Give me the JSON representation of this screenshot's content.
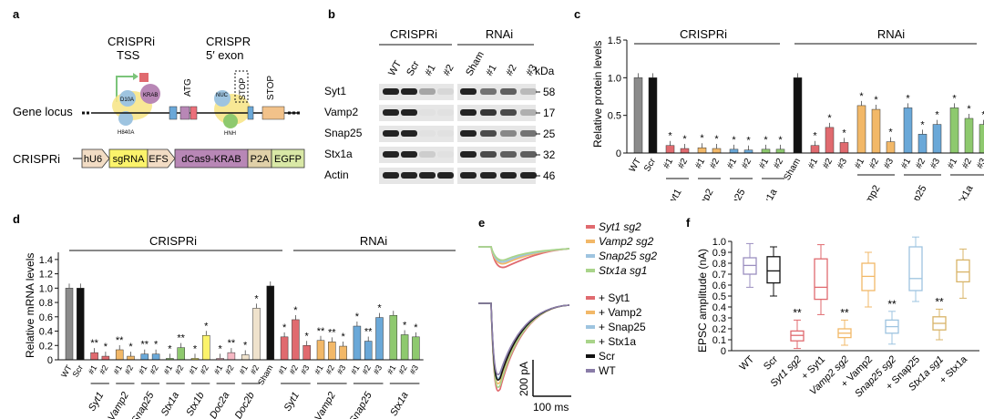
{
  "panel_a": {
    "letter": "a",
    "crispri_tss_line1": "CRISPRi",
    "crispri_tss_line2": "TSS",
    "crispr_exon_line1": "CRISPR",
    "crispr_exon_line2": "5′ exon",
    "atg": "ATG",
    "stop_boxed": "STOP",
    "stop": "STOP",
    "gene_locus": "Gene locus",
    "d10a": "D10A",
    "krab": "KRAB",
    "h840a": "H840A",
    "nuc": "NUC",
    "hnh": "HNH",
    "construct_label": "CRISPRi",
    "construct_parts": [
      "hU6",
      "sgRNA",
      "EFS",
      "dCas9-KRAB",
      "P2A",
      "EGFP"
    ],
    "colors": {
      "hU6": "#f2dcc4",
      "sgRNA": "#fbf36b",
      "EFS": "#f2dcc4",
      "dCas9": "#b887b6",
      "P2A": "#e0d0a8",
      "EGFP": "#d9e8a6",
      "krab_ball": "#b887b6",
      "dcas_ball": "#f7e58a",
      "exon1": "#ec6f7a",
      "exon2": "#6aa8d8",
      "exon3": "#f2c28a",
      "exon4": "#8ec96e"
    }
  },
  "panel_b": {
    "letter": "b",
    "group_crispri": "CRISPRi",
    "group_rnai": "RNAi",
    "lanes_crispri": [
      "WT",
      "Scr",
      "#1",
      "#2"
    ],
    "lanes_rnai": [
      "Sham",
      "#1",
      "#2",
      "#3"
    ],
    "kda": "kDa",
    "proteins": [
      "Syt1",
      "Vamp2",
      "Snap25",
      "Stx1a",
      "Actin"
    ],
    "weights": [
      "58",
      "17",
      "25",
      "32",
      "46"
    ]
  },
  "panel_c": {
    "letter": "c",
    "chart_data": {
      "type": "bar",
      "ylabel": "Relative protein levels",
      "ylim": [
        0,
        1.5
      ],
      "yticks": [
        "0",
        "0.5",
        "1.0",
        "1.5"
      ],
      "group_labels": [
        "CRISPRi",
        "RNAi"
      ],
      "control_labels": [
        "WT",
        "Scr",
        "Sham"
      ],
      "sublabels": [
        "Syt1",
        "Vamp2",
        "Snap25",
        "Stx1a",
        "Vamp2",
        "Snap25",
        "Stx1a"
      ],
      "bars": [
        {
          "label": "WT",
          "value": 1.0,
          "color": "#8b8b8b",
          "star": ""
        },
        {
          "label": "Scr",
          "value": 1.0,
          "color": "#111111",
          "star": ""
        },
        {
          "label": "#1",
          "value": 0.1,
          "color": "#e06a6f",
          "star": "*"
        },
        {
          "label": "#2",
          "value": 0.06,
          "color": "#e06a6f",
          "star": "*"
        },
        {
          "label": "#1",
          "value": 0.07,
          "color": "#f2b868",
          "star": "*"
        },
        {
          "label": "#2",
          "value": 0.06,
          "color": "#f2b868",
          "star": "*"
        },
        {
          "label": "#1",
          "value": 0.05,
          "color": "#6aa8d8",
          "star": "*"
        },
        {
          "label": "#2",
          "value": 0.04,
          "color": "#6aa8d8",
          "star": "*"
        },
        {
          "label": "#1",
          "value": 0.05,
          "color": "#8ec96e",
          "star": "*"
        },
        {
          "label": "#2",
          "value": 0.05,
          "color": "#8ec96e",
          "star": "*"
        },
        {
          "label": "Sham",
          "value": 1.0,
          "color": "#111111",
          "star": ""
        },
        {
          "label": "#1",
          "value": 0.1,
          "color": "#e06a6f",
          "star": "*"
        },
        {
          "label": "#2",
          "value": 0.34,
          "color": "#e06a6f",
          "star": "*"
        },
        {
          "label": "#3",
          "value": 0.14,
          "color": "#e06a6f",
          "star": "*"
        },
        {
          "label": "#1",
          "value": 0.63,
          "color": "#f2b868",
          "star": "*"
        },
        {
          "label": "#2",
          "value": 0.58,
          "color": "#f2b868",
          "star": "*"
        },
        {
          "label": "#3",
          "value": 0.15,
          "color": "#f2b868",
          "star": "*"
        },
        {
          "label": "#1",
          "value": 0.6,
          "color": "#6aa8d8",
          "star": "*"
        },
        {
          "label": "#2",
          "value": 0.25,
          "color": "#6aa8d8",
          "star": "*"
        },
        {
          "label": "#3",
          "value": 0.38,
          "color": "#6aa8d8",
          "star": "*"
        },
        {
          "label": "#1",
          "value": 0.6,
          "color": "#8ec96e",
          "star": "*"
        },
        {
          "label": "#2",
          "value": 0.46,
          "color": "#8ec96e",
          "star": "*"
        },
        {
          "label": "#3",
          "value": 0.38,
          "color": "#8ec96e",
          "star": "*"
        }
      ]
    }
  },
  "panel_d": {
    "letter": "d",
    "chart_data": {
      "type": "bar",
      "ylabel": "Relative mRNA levels",
      "ylim": [
        0,
        1.5
      ],
      "yticks": [
        "0",
        "0.2",
        "0.4",
        "0.6",
        "0.8",
        "1.0",
        "1.2",
        "1.4"
      ],
      "group_labels": [
        "CRISPRi",
        "RNAi"
      ],
      "control_labels": [
        "WT",
        "Scr",
        "Sham"
      ],
      "sublabels": [
        "Syt1",
        "Vamp2",
        "Snap25",
        "Stx1a",
        "Stx1b",
        "Doc2a",
        "Doc2b",
        "Syt1",
        "Vamp2",
        "Snap25",
        "Stx1a"
      ],
      "bars": [
        {
          "label": "WT",
          "value": 1.0,
          "color": "#8b8b8b",
          "star": ""
        },
        {
          "label": "Scr",
          "value": 1.0,
          "color": "#111111",
          "star": ""
        },
        {
          "label": "#1",
          "value": 0.1,
          "color": "#e06a6f",
          "star": "**"
        },
        {
          "label": "#2",
          "value": 0.05,
          "color": "#e06a6f",
          "star": "*"
        },
        {
          "label": "#1",
          "value": 0.14,
          "color": "#f2b868",
          "star": "**"
        },
        {
          "label": "#2",
          "value": 0.05,
          "color": "#f2b868",
          "star": "*"
        },
        {
          "label": "#1",
          "value": 0.08,
          "color": "#6aa8d8",
          "star": "**"
        },
        {
          "label": "#2",
          "value": 0.08,
          "color": "#6aa8d8",
          "star": "*"
        },
        {
          "label": "#1",
          "value": 0.02,
          "color": "#8ec96e",
          "star": "*"
        },
        {
          "label": "#2",
          "value": 0.17,
          "color": "#8ec96e",
          "star": "**"
        },
        {
          "label": "#1",
          "value": 0.02,
          "color": "#fbf36b",
          "star": "*"
        },
        {
          "label": "#2",
          "value": 0.34,
          "color": "#fbf36b",
          "star": "*"
        },
        {
          "label": "#1",
          "value": 0.02,
          "color": "#f5b7c3",
          "star": "*"
        },
        {
          "label": "#2",
          "value": 0.1,
          "color": "#f5b7c3",
          "star": "**"
        },
        {
          "label": "#1",
          "value": 0.07,
          "color": "#efe2cc",
          "star": "*"
        },
        {
          "label": "#2",
          "value": 0.72,
          "color": "#efe2cc",
          "star": "*"
        },
        {
          "label": "Sham",
          "value": 1.03,
          "color": "#111111",
          "star": ""
        },
        {
          "label": "#1",
          "value": 0.32,
          "color": "#e06a6f",
          "star": "*"
        },
        {
          "label": "#2",
          "value": 0.56,
          "color": "#e06a6f",
          "star": "*"
        },
        {
          "label": "#3",
          "value": 0.2,
          "color": "#e06a6f",
          "star": "*"
        },
        {
          "label": "#1",
          "value": 0.27,
          "color": "#f2b868",
          "star": "**"
        },
        {
          "label": "#2",
          "value": 0.25,
          "color": "#f2b868",
          "star": "**"
        },
        {
          "label": "#3",
          "value": 0.19,
          "color": "#f2b868",
          "star": "*"
        },
        {
          "label": "#1",
          "value": 0.47,
          "color": "#6aa8d8",
          "star": "*"
        },
        {
          "label": "#2",
          "value": 0.26,
          "color": "#6aa8d8",
          "star": "**"
        },
        {
          "label": "#3",
          "value": 0.59,
          "color": "#6aa8d8",
          "star": "*"
        },
        {
          "label": "#1",
          "value": 0.62,
          "color": "#8ec96e",
          "star": ""
        },
        {
          "label": "#2",
          "value": 0.35,
          "color": "#8ec96e",
          "star": "*"
        },
        {
          "label": "#3",
          "value": 0.32,
          "color": "#8ec96e",
          "star": "*"
        }
      ]
    }
  },
  "panel_e": {
    "letter": "e",
    "legend_top": [
      {
        "label": "Syt1 sg2",
        "color": "#e06a6f"
      },
      {
        "label": "Vamp2 sg2",
        "color": "#f2b868"
      },
      {
        "label": "Snap25 sg2",
        "color": "#9ec4e0"
      },
      {
        "label": "Stx1a sg1",
        "color": "#a9d48a"
      }
    ],
    "legend_bottom": [
      {
        "label": "+ Syt1",
        "color": "#e06a6f"
      },
      {
        "label": "+ Vamp2",
        "color": "#f2b868"
      },
      {
        "label": "+ Snap25",
        "color": "#9ec4e0"
      },
      {
        "label": "+ Stx1a",
        "color": "#a9d48a"
      },
      {
        "label": "Scr",
        "color": "#111111"
      },
      {
        "label": "WT",
        "color": "#8a7ca8"
      }
    ],
    "scale_y": "200 pA",
    "scale_x": "100 ms"
  },
  "panel_f": {
    "letter": "f",
    "chart_data": {
      "type": "box",
      "ylabel": "EPSC amplitude (nA)",
      "ylim": [
        0,
        1.1
      ],
      "yticks": [
        "0",
        "0.1",
        "0.2",
        "0.3",
        "0.4",
        "0.5",
        "0.6",
        "0.7",
        "0.8",
        "0.9",
        "1.0"
      ],
      "boxes": [
        {
          "label": "WT",
          "min": 0.58,
          "q1": 0.7,
          "median": 0.78,
          "q3": 0.85,
          "max": 0.98,
          "color": "#9b8fc0",
          "star": ""
        },
        {
          "label": "Scr",
          "min": 0.5,
          "q1": 0.62,
          "median": 0.73,
          "q3": 0.86,
          "max": 0.95,
          "color": "#111111",
          "star": ""
        },
        {
          "label": "Syt1 sg2",
          "min": 0.02,
          "q1": 0.09,
          "median": 0.14,
          "q3": 0.18,
          "max": 0.28,
          "color": "#e06a6f",
          "star": "**"
        },
        {
          "label": "+ Syt1",
          "min": 0.33,
          "q1": 0.47,
          "median": 0.58,
          "q3": 0.84,
          "max": 0.97,
          "color": "#e06a6f",
          "star": ""
        },
        {
          "label": "Vamp2 sg2",
          "min": 0.05,
          "q1": 0.12,
          "median": 0.16,
          "q3": 0.2,
          "max": 0.28,
          "color": "#f2b868",
          "star": "**"
        },
        {
          "label": "+ Vamp2",
          "min": 0.4,
          "q1": 0.55,
          "median": 0.68,
          "q3": 0.8,
          "max": 0.9,
          "color": "#f2b868",
          "star": ""
        },
        {
          "label": "Snap25 sg2",
          "min": 0.06,
          "q1": 0.16,
          "median": 0.22,
          "q3": 0.28,
          "max": 0.36,
          "color": "#9ec4e0",
          "star": "**"
        },
        {
          "label": "+ Snap25",
          "min": 0.45,
          "q1": 0.55,
          "median": 0.66,
          "q3": 0.95,
          "max": 1.04,
          "color": "#9ec4e0",
          "star": ""
        },
        {
          "label": "Stx1a sg1",
          "min": 0.1,
          "q1": 0.19,
          "median": 0.25,
          "q3": 0.31,
          "max": 0.38,
          "color": "#d8b468",
          "star": "**"
        },
        {
          "label": "+ Stx1a",
          "min": 0.48,
          "q1": 0.63,
          "median": 0.72,
          "q3": 0.83,
          "max": 0.93,
          "color": "#d8b468",
          "star": ""
        }
      ]
    }
  }
}
